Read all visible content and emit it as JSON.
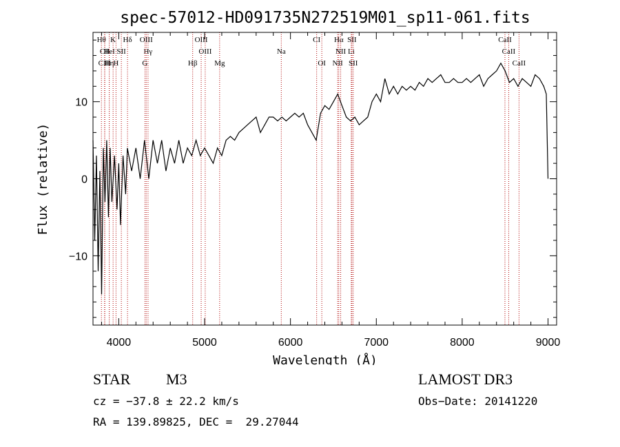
{
  "chart_data": {
    "type": "line",
    "title": "spec-57012-HD091735N272519M01_sp11-061.fits",
    "xlabel": "Wavelength (Å)",
    "ylabel": "Flux (relative)",
    "xlim": [
      3700,
      9100
    ],
    "ylim": [
      -19,
      19
    ],
    "xticks": [
      4000,
      5000,
      6000,
      7000,
      8000,
      9000
    ],
    "xtick_labels": [
      "4000",
      "5000",
      "6000",
      "7000",
      "8000",
      "9000"
    ],
    "yticks": [
      -10,
      0,
      10
    ],
    "ytick_labels": [
      "−10",
      "0",
      "10"
    ],
    "grid": false,
    "series": [
      {
        "name": "spectrum",
        "points": [
          [
            3700,
            5
          ],
          [
            3720,
            -8
          ],
          [
            3740,
            3
          ],
          [
            3760,
            -12
          ],
          [
            3780,
            1
          ],
          [
            3800,
            -15
          ],
          [
            3820,
            4
          ],
          [
            3840,
            -3
          ],
          [
            3860,
            5
          ],
          [
            3880,
            -5
          ],
          [
            3900,
            4
          ],
          [
            3920,
            -3
          ],
          [
            3950,
            3
          ],
          [
            3980,
            -4
          ],
          [
            4000,
            2
          ],
          [
            4020,
            -6
          ],
          [
            4050,
            3
          ],
          [
            4080,
            -2
          ],
          [
            4100,
            4
          ],
          [
            4150,
            1
          ],
          [
            4200,
            4
          ],
          [
            4250,
            0
          ],
          [
            4300,
            5
          ],
          [
            4350,
            0
          ],
          [
            4400,
            5
          ],
          [
            4450,
            2
          ],
          [
            4500,
            5
          ],
          [
            4550,
            1
          ],
          [
            4600,
            4
          ],
          [
            4650,
            2
          ],
          [
            4700,
            5
          ],
          [
            4750,
            2
          ],
          [
            4800,
            4
          ],
          [
            4850,
            3
          ],
          [
            4900,
            5
          ],
          [
            4950,
            3
          ],
          [
            5000,
            4
          ],
          [
            5050,
            3
          ],
          [
            5100,
            2
          ],
          [
            5150,
            4
          ],
          [
            5200,
            3
          ],
          [
            5250,
            5
          ],
          [
            5300,
            5.5
          ],
          [
            5350,
            5
          ],
          [
            5400,
            6
          ],
          [
            5450,
            6.5
          ],
          [
            5500,
            7
          ],
          [
            5550,
            7.5
          ],
          [
            5600,
            8
          ],
          [
            5650,
            6
          ],
          [
            5700,
            7
          ],
          [
            5750,
            8
          ],
          [
            5800,
            8
          ],
          [
            5850,
            7.5
          ],
          [
            5900,
            8
          ],
          [
            5950,
            7.5
          ],
          [
            6000,
            8
          ],
          [
            6050,
            8.5
          ],
          [
            6100,
            8
          ],
          [
            6150,
            8.5
          ],
          [
            6200,
            7
          ],
          [
            6250,
            6
          ],
          [
            6300,
            5
          ],
          [
            6350,
            8.5
          ],
          [
            6400,
            9.5
          ],
          [
            6450,
            9
          ],
          [
            6500,
            10
          ],
          [
            6550,
            11
          ],
          [
            6600,
            9.5
          ],
          [
            6650,
            8
          ],
          [
            6700,
            7.5
          ],
          [
            6750,
            8
          ],
          [
            6800,
            7
          ],
          [
            6850,
            7.5
          ],
          [
            6900,
            8
          ],
          [
            6950,
            10
          ],
          [
            7000,
            11
          ],
          [
            7050,
            10
          ],
          [
            7100,
            13
          ],
          [
            7150,
            11
          ],
          [
            7200,
            12
          ],
          [
            7250,
            11
          ],
          [
            7300,
            12
          ],
          [
            7350,
            11.5
          ],
          [
            7400,
            12
          ],
          [
            7450,
            11.5
          ],
          [
            7500,
            12.5
          ],
          [
            7550,
            12
          ],
          [
            7600,
            13
          ],
          [
            7650,
            12.5
          ],
          [
            7700,
            13
          ],
          [
            7750,
            13.5
          ],
          [
            7800,
            12.5
          ],
          [
            7850,
            12.5
          ],
          [
            7900,
            13
          ],
          [
            7950,
            12.5
          ],
          [
            8000,
            12.5
          ],
          [
            8050,
            13
          ],
          [
            8100,
            12.5
          ],
          [
            8150,
            13
          ],
          [
            8200,
            13.5
          ],
          [
            8250,
            12
          ],
          [
            8300,
            13
          ],
          [
            8350,
            13.5
          ],
          [
            8400,
            14
          ],
          [
            8450,
            15
          ],
          [
            8500,
            14
          ],
          [
            8550,
            12.5
          ],
          [
            8600,
            13
          ],
          [
            8650,
            12
          ],
          [
            8700,
            13
          ],
          [
            8750,
            12.5
          ],
          [
            8800,
            12
          ],
          [
            8850,
            13.5
          ],
          [
            8900,
            13
          ],
          [
            8950,
            12
          ],
          [
            8980,
            11
          ],
          [
            9000,
            0
          ]
        ]
      }
    ],
    "line_markers": [
      {
        "label": "Hθ",
        "x": 3798,
        "row": 0
      },
      {
        "label": "CII",
        "x": 3838,
        "row": 1
      },
      {
        "label": "CIII",
        "x": 3835,
        "row": 2
      },
      {
        "label": "HeI",
        "x": 3889,
        "row": 1
      },
      {
        "label": "Hη",
        "x": 3889,
        "row": 2
      },
      {
        "label": "K",
        "x": 3934,
        "row": 0
      },
      {
        "label": "H",
        "x": 3968,
        "row": 2
      },
      {
        "label": "SII",
        "x": 4030,
        "row": 1
      },
      {
        "label": "Hδ",
        "x": 4102,
        "row": 0
      },
      {
        "label": "OIII",
        "x": 4320,
        "row": 0
      },
      {
        "label": "Hγ",
        "x": 4341,
        "row": 1
      },
      {
        "label": "G",
        "x": 4305,
        "row": 2
      },
      {
        "label": "Hβ",
        "x": 4861,
        "row": 2
      },
      {
        "label": "OIII",
        "x": 4960,
        "row": 0
      },
      {
        "label": "OIII",
        "x": 5007,
        "row": 1
      },
      {
        "label": "Mg",
        "x": 5175,
        "row": 2
      },
      {
        "label": "Na",
        "x": 5893,
        "row": 1
      },
      {
        "label": "CI",
        "x": 6305,
        "row": 0
      },
      {
        "label": "OI",
        "x": 6365,
        "row": 2
      },
      {
        "label": "Hα",
        "x": 6563,
        "row": 0
      },
      {
        "label": "NII",
        "x": 6585,
        "row": 1
      },
      {
        "label": "NII",
        "x": 6550,
        "row": 2
      },
      {
        "label": "SII",
        "x": 6716,
        "row": 0
      },
      {
        "label": "Li",
        "x": 6708,
        "row": 1
      },
      {
        "label": "SII",
        "x": 6731,
        "row": 2
      },
      {
        "label": "CaII",
        "x": 8498,
        "row": 0
      },
      {
        "label": "CaII",
        "x": 8542,
        "row": 1
      },
      {
        "label": "CaII",
        "x": 8662,
        "row": 2
      }
    ]
  },
  "info": {
    "class_label": "STAR",
    "subclass": "M3",
    "survey": "LAMOST DR3",
    "redshift": "cz = −37.8 ± 22.2 km/s",
    "obs_date": "Obs−Date: 20141220",
    "coords": "RA = 139.89825, DEC =  29.27044"
  },
  "colors": {
    "line": "#000000",
    "marker": "#b00000",
    "axis": "#000000"
  }
}
